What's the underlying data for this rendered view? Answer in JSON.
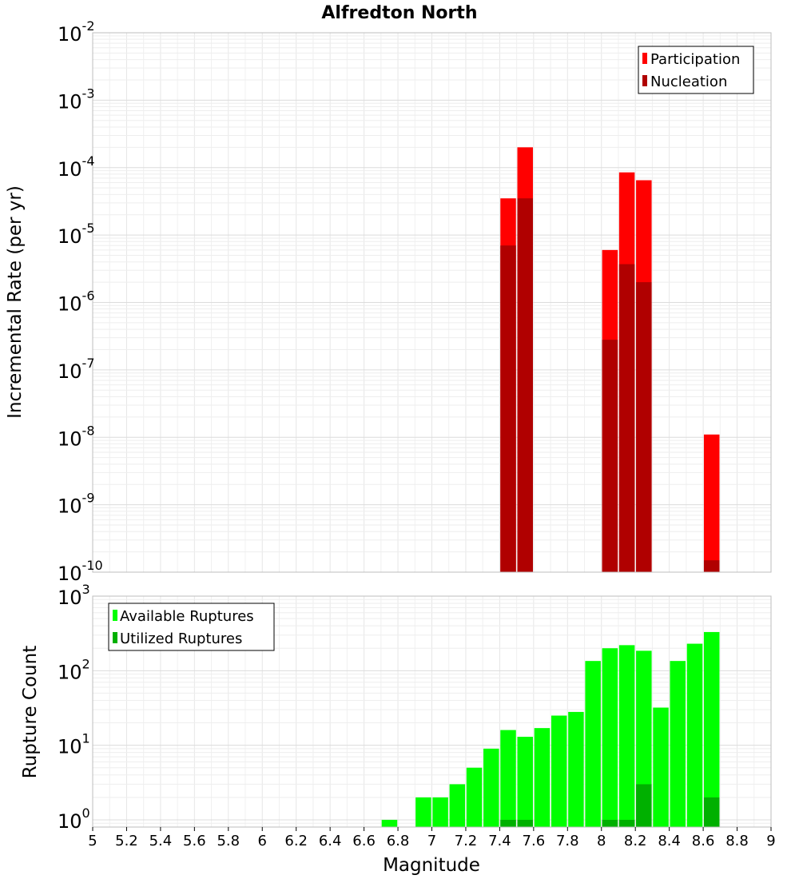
{
  "chart_data": [
    {
      "type": "bar",
      "title": "Alfredton North",
      "xlabel": "Magnitude",
      "ylabel": "Incremental Rate (per yr)",
      "yscale": "log",
      "ylim": [
        1e-10,
        0.01
      ],
      "xlim": [
        5,
        9
      ],
      "grid": true,
      "legend_position": "top-right",
      "x_ticks": [
        "5",
        "5.2",
        "5.4",
        "5.6",
        "5.8",
        "6",
        "6.2",
        "6.4",
        "6.6",
        "6.8",
        "7",
        "7.2",
        "7.4",
        "7.6",
        "7.8",
        "8",
        "8.2",
        "8.4",
        "8.6",
        "8.8",
        "9"
      ],
      "y_ticks": [
        {
          "base": "10",
          "exp": "-10"
        },
        {
          "base": "10",
          "exp": "-9"
        },
        {
          "base": "10",
          "exp": "-8"
        },
        {
          "base": "10",
          "exp": "-7"
        },
        {
          "base": "10",
          "exp": "-6"
        },
        {
          "base": "10",
          "exp": "-5"
        },
        {
          "base": "10",
          "exp": "-4"
        },
        {
          "base": "10",
          "exp": "-3"
        },
        {
          "base": "10",
          "exp": "-2"
        }
      ],
      "series": [
        {
          "name": "Participation",
          "color": "#ff0000",
          "points": [
            {
              "x": 7.45,
              "y": 3.5e-05
            },
            {
              "x": 7.55,
              "y": 0.0002
            },
            {
              "x": 8.05,
              "y": 6e-06
            },
            {
              "x": 8.15,
              "y": 8.5e-05
            },
            {
              "x": 8.25,
              "y": 6.5e-05
            },
            {
              "x": 8.65,
              "y": 1.1e-08
            }
          ]
        },
        {
          "name": "Nucleation",
          "color": "#b00000",
          "points": [
            {
              "x": 7.45,
              "y": 7e-06
            },
            {
              "x": 7.55,
              "y": 3.5e-05
            },
            {
              "x": 8.05,
              "y": 2.8e-07
            },
            {
              "x": 8.15,
              "y": 3.7e-06
            },
            {
              "x": 8.25,
              "y": 2e-06
            },
            {
              "x": 8.65,
              "y": 1.5e-10
            }
          ]
        }
      ]
    },
    {
      "type": "bar",
      "xlabel": "Magnitude",
      "ylabel": "Rupture Count",
      "yscale": "log",
      "ylim": [
        0.8,
        1000
      ],
      "xlim": [
        5,
        9
      ],
      "grid": true,
      "legend_position": "top-left",
      "y_ticks": [
        {
          "base": "10",
          "exp": "0"
        },
        {
          "base": "10",
          "exp": "1"
        },
        {
          "base": "10",
          "exp": "2"
        },
        {
          "base": "10",
          "exp": "3"
        }
      ],
      "series": [
        {
          "name": "Available Ruptures",
          "color": "#00ff00",
          "points": [
            {
              "x": 6.75,
              "y": 1
            },
            {
              "x": 6.95,
              "y": 2
            },
            {
              "x": 7.05,
              "y": 2
            },
            {
              "x": 7.15,
              "y": 3
            },
            {
              "x": 7.25,
              "y": 5
            },
            {
              "x": 7.35,
              "y": 9
            },
            {
              "x": 7.45,
              "y": 16
            },
            {
              "x": 7.55,
              "y": 13
            },
            {
              "x": 7.65,
              "y": 17
            },
            {
              "x": 7.75,
              "y": 25
            },
            {
              "x": 7.85,
              "y": 28
            },
            {
              "x": 7.95,
              "y": 135
            },
            {
              "x": 8.05,
              "y": 200
            },
            {
              "x": 8.15,
              "y": 220
            },
            {
              "x": 8.25,
              "y": 185
            },
            {
              "x": 8.35,
              "y": 32
            },
            {
              "x": 8.45,
              "y": 135
            },
            {
              "x": 8.55,
              "y": 230
            },
            {
              "x": 8.65,
              "y": 330
            }
          ]
        },
        {
          "name": "Utilized Ruptures",
          "color": "#00b000",
          "points": [
            {
              "x": 7.45,
              "y": 1
            },
            {
              "x": 7.55,
              "y": 1
            },
            {
              "x": 8.05,
              "y": 1
            },
            {
              "x": 8.15,
              "y": 1
            },
            {
              "x": 8.25,
              "y": 3
            },
            {
              "x": 8.65,
              "y": 2
            }
          ]
        }
      ]
    }
  ]
}
